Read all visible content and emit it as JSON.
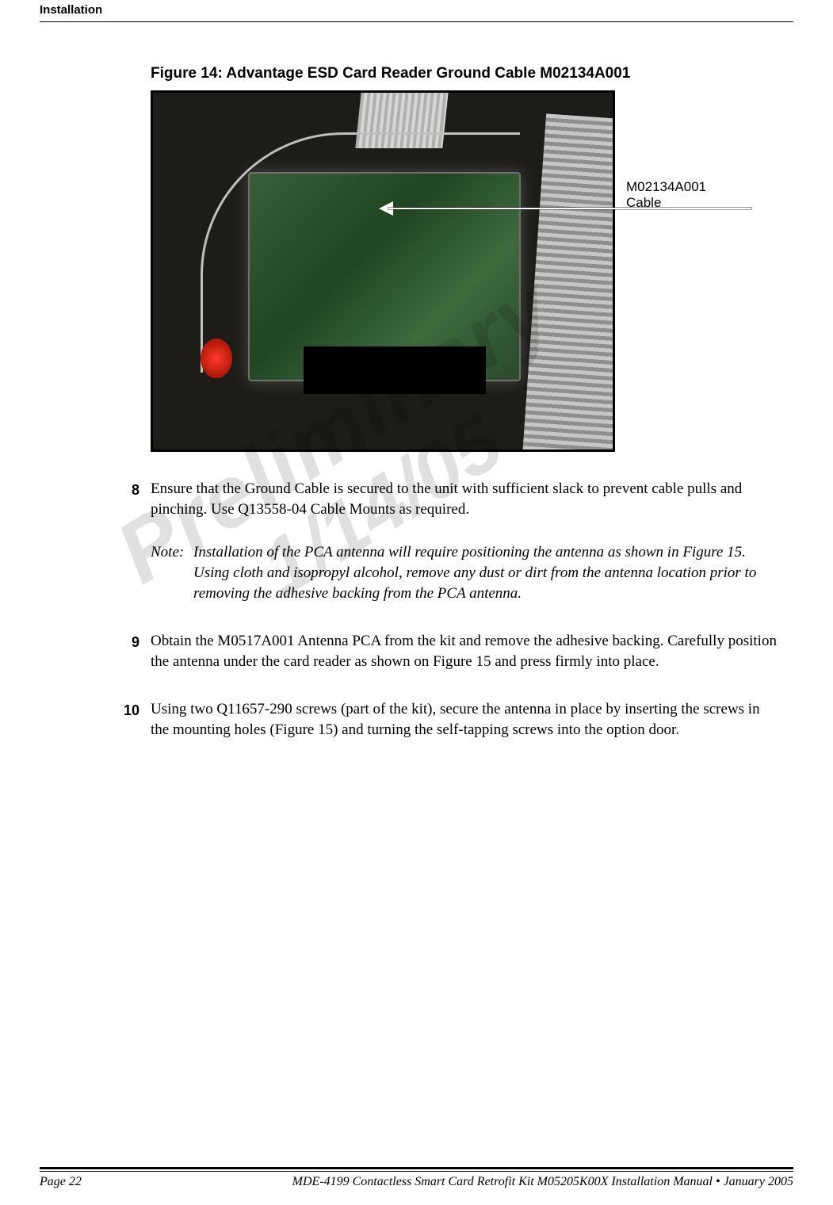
{
  "header": {
    "running_title": "Installation"
  },
  "figure": {
    "caption": "Figure 14: Advantage ESD Card Reader Ground Cable M02134A001",
    "callout_label_line1": "M02134A001",
    "callout_label_line2": "Cable"
  },
  "watermark": {
    "line1": "Preliminary",
    "line2": "1/14/05"
  },
  "steps": {
    "s8": {
      "num": "8",
      "text": "Ensure that the Ground Cable is secured to the unit with sufficient slack to prevent cable pulls and pinching. Use Q13558-04 Cable Mounts as required."
    },
    "note": {
      "label": "Note:",
      "text": "Installation of the PCA antenna will require positioning the antenna as shown in Figure 15. Using cloth and isopropyl alcohol, remove any dust or dirt from the antenna location prior to removing the adhesive backing from the PCA antenna."
    },
    "s9": {
      "num": "9",
      "text": "Obtain the M0517A001 Antenna PCA from the kit and remove the adhesive backing. Carefully position the antenna under the card reader as shown on Figure 15 and press firmly into place."
    },
    "s10": {
      "num": "10",
      "text": "Using two Q11657-290 screws (part of the kit), secure the antenna in place by inserting the screws in the mounting holes (Figure 15) and turning the self-tapping screws into the option door."
    }
  },
  "footer": {
    "page_label": "Page 22",
    "doc_line": "MDE-4199 Contactless Smart Card Retrofit Kit M05205K00X Installation Manual • January 2005"
  }
}
